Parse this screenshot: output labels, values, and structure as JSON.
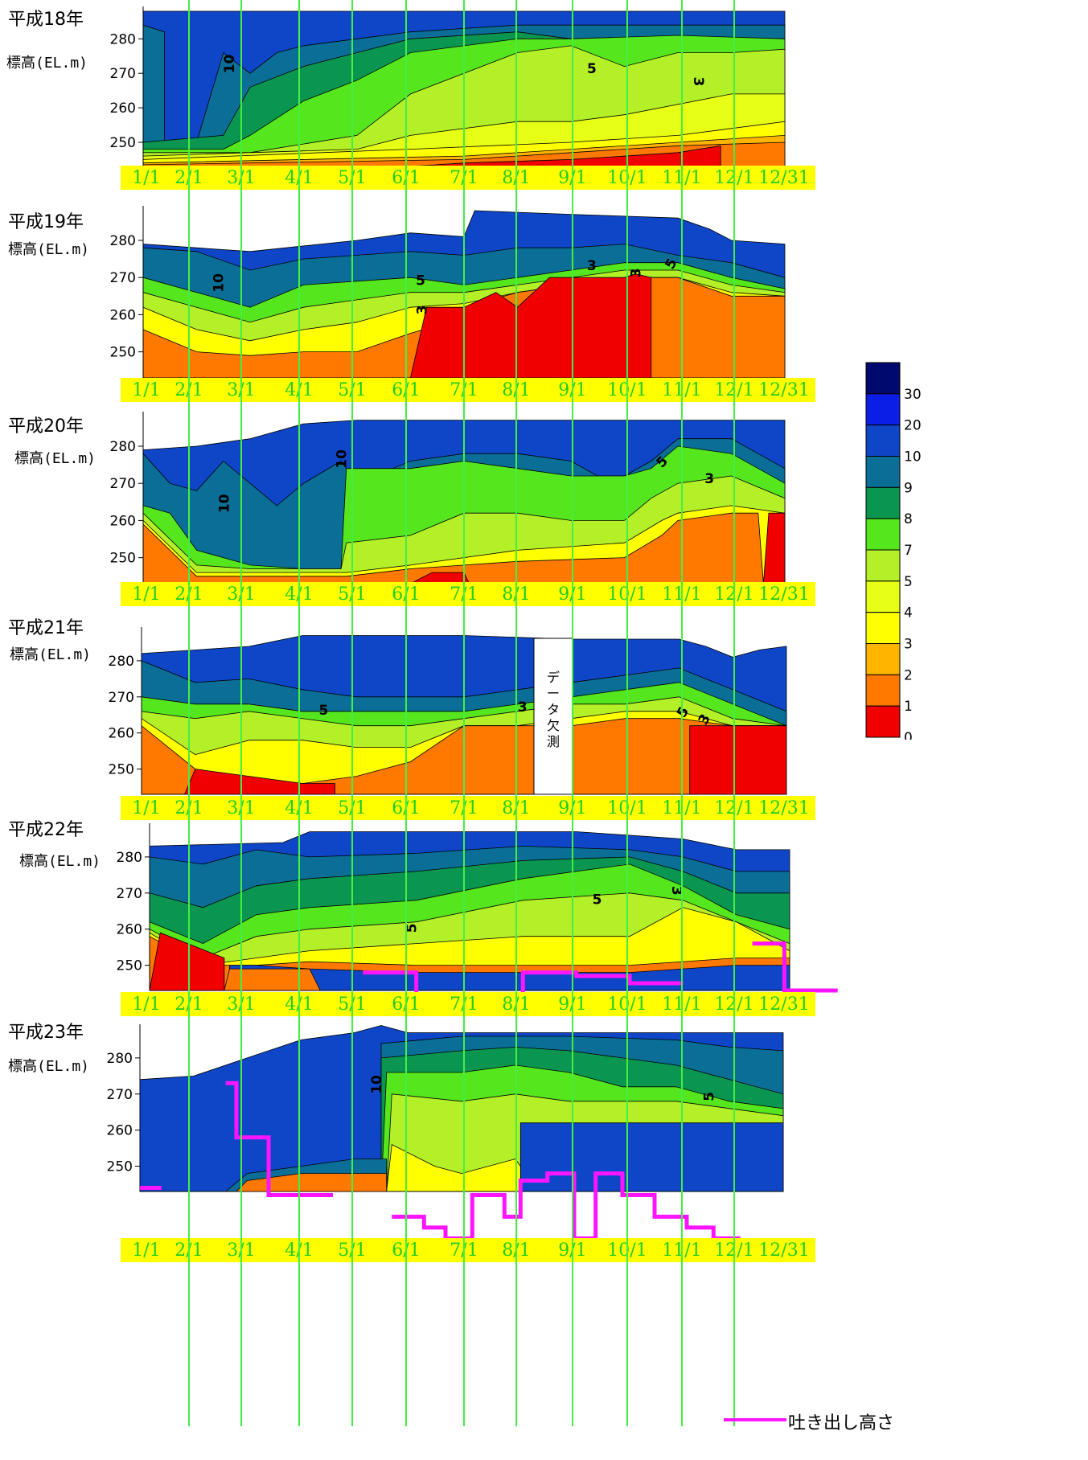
{
  "chart_data": [
    {
      "type": "heatmap",
      "title": "平成18年",
      "ylabel": "標高(EL.m)",
      "yticks": [
        250,
        260,
        270,
        280
      ],
      "ylim": [
        243,
        288
      ],
      "x_ticks": [
        "1/1",
        "2/1",
        "3/1",
        "4/1",
        "5/1",
        "6/1",
        "7/1",
        "8/1",
        "9/1",
        "10/1",
        "11/1",
        "12/1",
        "12/31"
      ],
      "contour_labels": [
        "10",
        "5",
        "3"
      ]
    },
    {
      "type": "heatmap",
      "title": "平成19年",
      "ylabel": "標高(EL.m)",
      "yticks": [
        250,
        260,
        270,
        280
      ],
      "ylim": [
        243,
        288
      ],
      "x_ticks": [
        "1/1",
        "2/1",
        "3/1",
        "4/1",
        "5/1",
        "6/1",
        "7/1",
        "8/1",
        "9/1",
        "10/1",
        "11/1",
        "12/1",
        "12/31"
      ],
      "contour_labels": [
        "10",
        "5",
        "3",
        "3",
        "3",
        "5"
      ]
    },
    {
      "type": "heatmap",
      "title": "平成20年",
      "ylabel": "標高(EL.m)",
      "yticks": [
        250,
        260,
        270,
        280
      ],
      "ylim": [
        243,
        288
      ],
      "x_ticks": [
        "1/1",
        "2/1",
        "3/1",
        "4/1",
        "5/1",
        "6/1",
        "7/1",
        "8/1",
        "9/1",
        "10/1",
        "11/1",
        "12/1",
        "12/31"
      ],
      "contour_labels": [
        "10",
        "10",
        "5",
        "3"
      ]
    },
    {
      "type": "heatmap",
      "title": "平成21年",
      "ylabel": "標高(EL.m)",
      "yticks": [
        250,
        260,
        270,
        280
      ],
      "ylim": [
        243,
        288
      ],
      "x_ticks": [
        "1/1",
        "2/1",
        "3/1",
        "4/1",
        "5/1",
        "6/1",
        "7/1",
        "8/1",
        "9/1",
        "10/1",
        "11/1",
        "12/1",
        "12/31"
      ],
      "contour_labels": [
        "5",
        "3",
        "5",
        "3"
      ],
      "missing_note": "データ欠測"
    },
    {
      "type": "heatmap",
      "title": "平成22年",
      "ylabel": "標高(EL.m)",
      "yticks": [
        250,
        260,
        270,
        280
      ],
      "ylim": [
        243,
        288
      ],
      "x_ticks": [
        "1/1",
        "2/1",
        "3/1",
        "4/1",
        "5/1",
        "6/1",
        "7/1",
        "8/1",
        "9/1",
        "10/1",
        "11/1",
        "12/1",
        "12/31"
      ],
      "contour_labels": [
        "5",
        "5",
        "3"
      ],
      "discharge_height_segments": [
        [
          [
            4,
            248
          ],
          [
            5,
            248
          ],
          [
            5,
            242
          ],
          [
            6,
            242
          ],
          [
            6,
            240
          ],
          [
            7,
            240
          ],
          [
            7,
            248
          ],
          [
            8,
            248
          ],
          [
            8,
            247
          ],
          [
            9,
            247
          ],
          [
            9,
            245
          ],
          [
            10,
            245
          ]
        ],
        [
          [
            11.3,
            256
          ],
          [
            11.9,
            256
          ],
          [
            11.9,
            243
          ],
          [
            12.9,
            243
          ]
        ]
      ]
    },
    {
      "type": "heatmap",
      "title": "平成23年",
      "ylabel": "標高(EL.m)",
      "yticks": [
        250,
        260,
        270,
        280
      ],
      "ylim": [
        243,
        288
      ],
      "x_ticks": [
        "1/1",
        "2/1",
        "3/1",
        "4/1",
        "5/1",
        "6/1",
        "7/1",
        "8/1",
        "9/1",
        "10/1",
        "11/1",
        "12/1",
        "12/31"
      ],
      "contour_labels": [
        "10",
        "5"
      ],
      "discharge_height_segments": [
        [
          [
            0,
            244
          ],
          [
            0.4,
            244
          ]
        ],
        [
          [
            1.6,
            273
          ],
          [
            1.8,
            273
          ],
          [
            1.8,
            258
          ],
          [
            2.4,
            258
          ],
          [
            2.4,
            242
          ],
          [
            3.6,
            242
          ]
        ],
        [
          [
            4.7,
            236
          ],
          [
            5.3,
            236
          ],
          [
            5.3,
            233
          ],
          [
            5.7,
            233
          ],
          [
            5.7,
            230
          ],
          [
            6.2,
            230
          ],
          [
            6.2,
            242
          ],
          [
            6.8,
            242
          ],
          [
            6.8,
            236
          ],
          [
            7.1,
            236
          ],
          [
            7.1,
            246
          ],
          [
            7.6,
            246
          ],
          [
            7.6,
            248
          ],
          [
            8.1,
            248
          ],
          [
            8.1,
            230
          ],
          [
            8.5,
            230
          ],
          [
            8.5,
            248
          ],
          [
            9.0,
            248
          ],
          [
            9.0,
            242
          ],
          [
            9.6,
            242
          ],
          [
            9.6,
            236
          ],
          [
            10.2,
            236
          ],
          [
            10.2,
            233
          ],
          [
            10.7,
            233
          ],
          [
            10.7,
            230
          ],
          [
            11.2,
            230
          ]
        ]
      ]
    }
  ],
  "colorbar": {
    "ticks": [
      "30",
      "20",
      "10",
      "9",
      "8",
      "7",
      "5",
      "4",
      "3",
      "2",
      "1",
      "0"
    ],
    "colors": [
      "#000a6e",
      "#0a1ee6",
      "#0f46c8",
      "#0a6e96",
      "#0a9650",
      "#55e61e",
      "#b4f028",
      "#e6ff14",
      "#ffff00",
      "#ffb400",
      "#ff7800",
      "#f00000"
    ]
  },
  "legend": {
    "label": "吐き出し高さ",
    "color": "#ff14ff"
  },
  "colors": {
    "date_bar": "#ffff00",
    "date_text": "#22cc22",
    "month_line": "#44ee44",
    "discharge": "#ff14ff"
  }
}
